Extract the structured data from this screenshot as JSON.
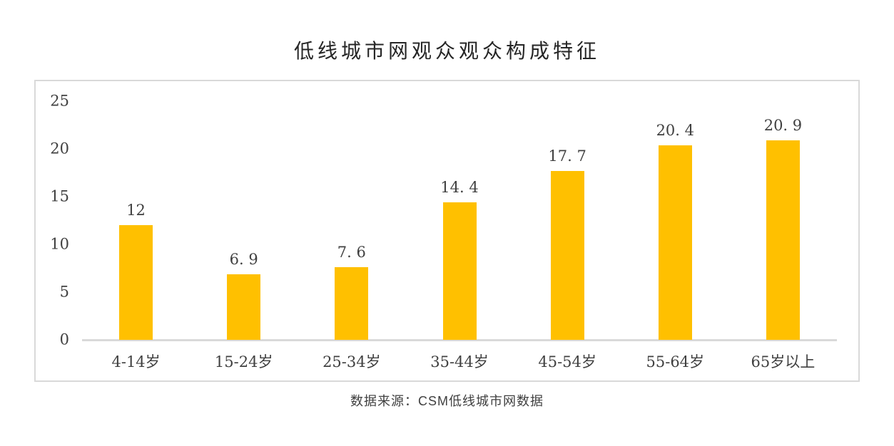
{
  "page": {
    "title": "低线城市网观众观众构成特征",
    "source_note": "数据来源：CSM低线城市网数据"
  },
  "chart_data": {
    "type": "bar",
    "title": "低线城市网观众观众构成特征",
    "categories": [
      "4-14岁",
      "15-24岁",
      "25-34岁",
      "35-44岁",
      "45-54岁",
      "55-64岁",
      "65岁以上"
    ],
    "values": [
      12,
      6.9,
      7.6,
      14.4,
      17.7,
      20.4,
      20.9
    ],
    "value_labels": [
      "12",
      "6. 9",
      "7. 6",
      "14. 4",
      "17. 7",
      "20. 4",
      "20. 9"
    ],
    "xlabel": "",
    "ylabel": "",
    "ylim": [
      0,
      25
    ],
    "yticks": [
      0,
      5,
      10,
      15,
      20,
      25
    ],
    "grid": false,
    "legend": "none",
    "source_note": "数据来源：CSM低线城市网数据"
  },
  "colors": {
    "bar": "#FFC000",
    "axis_line": "#D9D9D9",
    "frame_border": "#D9D9D9",
    "label_text": "#404040",
    "title_text": "#262626"
  }
}
